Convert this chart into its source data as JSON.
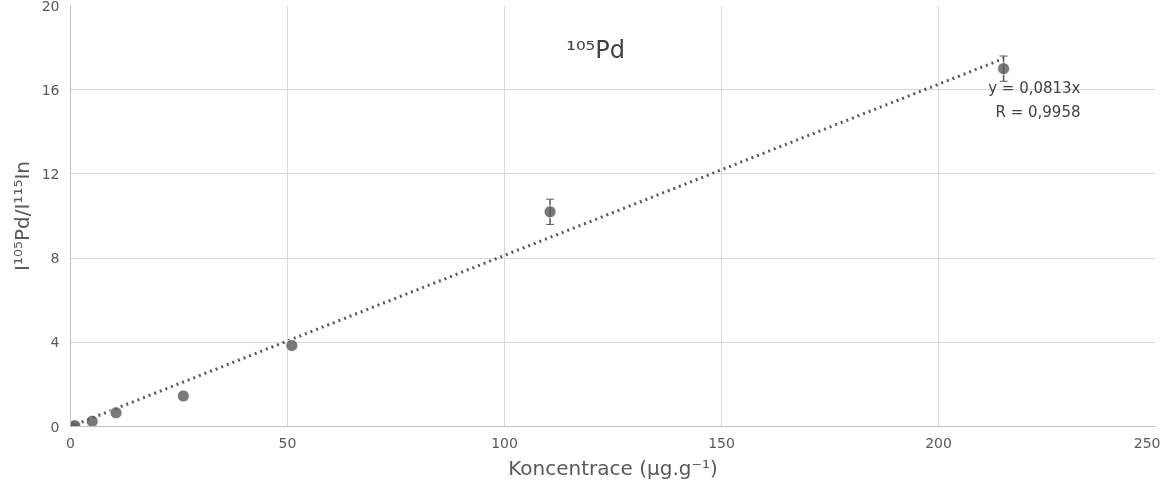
{
  "chart_data": {
    "type": "scatter",
    "title": "¹⁰⁵Pd",
    "xlabel": "Koncentrace (µg.g⁻¹)",
    "ylabel": "I¹⁰⁵Pd/I¹¹⁵In",
    "xlim": [
      0,
      250
    ],
    "xticks": [
      0,
      50,
      100,
      150,
      200,
      250
    ],
    "ylim": [
      0,
      20
    ],
    "yticks": [
      0,
      4,
      8,
      12,
      16,
      20
    ],
    "grid": true,
    "marker": "circle",
    "annotations": [
      "y = 0,0813x",
      "R = 0,9958"
    ],
    "series": [
      {
        "color": "#595959",
        "x": [
          0,
          1,
          5,
          10.5,
          26,
          51,
          110.5,
          215
        ],
        "values": [
          0,
          0.04,
          0.25,
          0.65,
          1.45,
          3.85,
          10.2,
          17.0
        ],
        "errors": [
          null,
          null,
          null,
          null,
          null,
          null,
          0.6,
          0.6
        ]
      },
      {
        "type": "line",
        "color": "#595959",
        "line_style": "dotted",
        "marker": "none",
        "x": [
          0,
          215
        ],
        "values": [
          0,
          17.48
        ]
      }
    ]
  }
}
